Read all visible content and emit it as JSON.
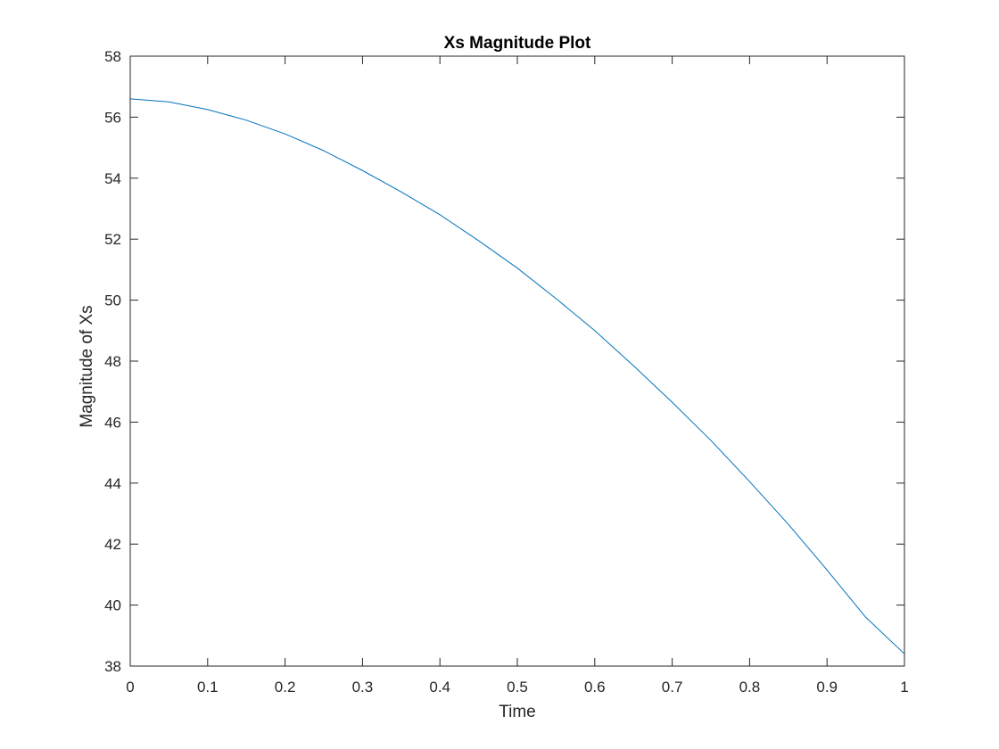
{
  "chart_data": {
    "type": "line",
    "title": "Xs Magnitude Plot",
    "xlabel": "Time",
    "ylabel": "Magnitude of Xs",
    "xlim": [
      0,
      1
    ],
    "ylim": [
      38,
      58
    ],
    "xticks": [
      "0",
      "0.1",
      "0.2",
      "0.3",
      "0.4",
      "0.5",
      "0.6",
      "0.7",
      "0.8",
      "0.9",
      "1"
    ],
    "yticks": [
      "38",
      "40",
      "42",
      "44",
      "46",
      "48",
      "50",
      "52",
      "54",
      "56",
      "58"
    ],
    "grid": false,
    "series": [
      {
        "color": "#0072bd",
        "x": [
          0,
          0.05,
          0.1,
          0.15,
          0.2,
          0.25,
          0.3,
          0.35,
          0.4,
          0.45,
          0.5,
          0.55,
          0.6,
          0.65,
          0.7,
          0.75,
          0.8,
          0.85,
          0.9,
          0.95,
          1.0
        ],
        "y": [
          56.6,
          56.5,
          56.25,
          55.9,
          55.45,
          54.9,
          54.25,
          53.55,
          52.8,
          51.95,
          51.05,
          50.05,
          49.0,
          47.85,
          46.65,
          45.4,
          44.05,
          42.65,
          41.15,
          39.6,
          38.4
        ]
      }
    ]
  }
}
